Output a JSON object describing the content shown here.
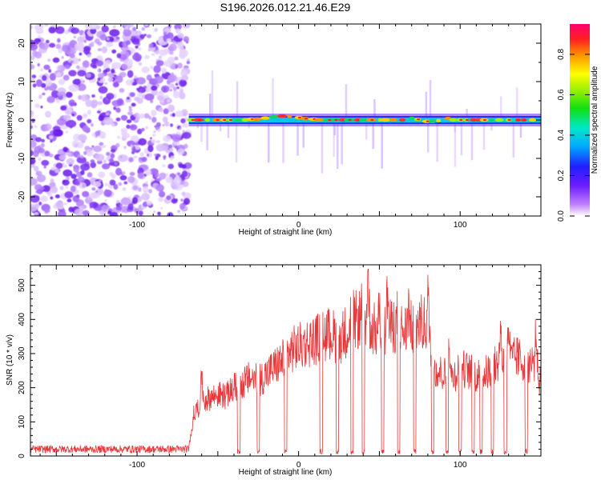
{
  "title": "S196.2026.012.21.46.E29",
  "colors": {
    "snr_line": "#e8373a",
    "axis": "#000000",
    "spectro_bg": "#ffffff"
  },
  "chart_data": [
    {
      "type": "heatmap",
      "name": "spectrogram",
      "xlabel": "Height of straight line (km)",
      "ylabel": "Frequency (Hz)",
      "xlim": [
        -166,
        150
      ],
      "ylim": [
        -25,
        25
      ],
      "xticks": [
        -100,
        0,
        100
      ],
      "xtick_labels": [
        "-100",
        "0",
        "100"
      ],
      "yticks": [
        20,
        10,
        0,
        -10,
        -20
      ],
      "ytick_labels": [
        "20",
        "10",
        "0",
        "-10",
        "-20"
      ],
      "noise_region_km": [
        -166,
        -68
      ],
      "signal_region_km": [
        -68,
        150
      ],
      "signal_frequency_hz": 0,
      "colorbar": {
        "label": "Normalized spectral amplitude",
        "range": [
          0,
          0.95
        ],
        "ticks": [
          0.0,
          0.2,
          0.4,
          0.6,
          0.8
        ],
        "tick_labels": [
          "0.0",
          "0.2",
          "0.4",
          "0.6",
          "0.8"
        ]
      }
    },
    {
      "type": "line",
      "name": "snr",
      "xlabel": "Height of straight line (km)",
      "ylabel": "SNR (10 * v/v)",
      "xlim": [
        -166,
        150
      ],
      "ylim": [
        0,
        560
      ],
      "xticks": [
        -100,
        0,
        100
      ],
      "xtick_labels": [
        "-100",
        "0",
        "100"
      ],
      "yticks": [
        0,
        100,
        200,
        300,
        400,
        500
      ],
      "ytick_labels": [
        "0",
        "100",
        "200",
        "300",
        "400",
        "500"
      ],
      "noise_floor": 20,
      "envelope": [
        [
          -166,
          22
        ],
        [
          -68,
          22
        ],
        [
          -65,
          120
        ],
        [
          -60,
          160
        ],
        [
          -55,
          170
        ],
        [
          -50,
          180
        ],
        [
          -45,
          175
        ],
        [
          -40,
          200
        ],
        [
          -35,
          210
        ],
        [
          -30,
          230
        ],
        [
          -25,
          220
        ],
        [
          -20,
          240
        ],
        [
          -15,
          260
        ],
        [
          -10,
          280
        ],
        [
          -5,
          310
        ],
        [
          0,
          320
        ],
        [
          5,
          330
        ],
        [
          10,
          340
        ],
        [
          15,
          350
        ],
        [
          20,
          360
        ],
        [
          25,
          340
        ],
        [
          30,
          370
        ],
        [
          35,
          395
        ],
        [
          40,
          410
        ],
        [
          45,
          380
        ],
        [
          50,
          350
        ],
        [
          55,
          370
        ],
        [
          60,
          385
        ],
        [
          65,
          365
        ],
        [
          70,
          375
        ],
        [
          75,
          390
        ],
        [
          80,
          380
        ],
        [
          85,
          250
        ],
        [
          90,
          240
        ],
        [
          95,
          230
        ],
        [
          100,
          260
        ],
        [
          105,
          250
        ],
        [
          110,
          235
        ],
        [
          115,
          240
        ],
        [
          120,
          255
        ],
        [
          125,
          280
        ],
        [
          130,
          275
        ],
        [
          135,
          290
        ],
        [
          140,
          270
        ],
        [
          145,
          275
        ],
        [
          150,
          210
        ]
      ],
      "dropouts_km": [
        -37,
        -25,
        -8,
        14,
        24,
        33,
        40,
        52,
        62,
        72,
        83,
        92,
        100,
        108,
        113,
        120,
        128,
        141
      ],
      "peaks": [
        [
          -60,
          250
        ],
        [
          33,
          470
        ],
        [
          40,
          520
        ],
        [
          43,
          555
        ],
        [
          50,
          480
        ],
        [
          55,
          520
        ],
        [
          62,
          495
        ],
        [
          68,
          460
        ],
        [
          80,
          490
        ],
        [
          93,
          420
        ],
        [
          100,
          400
        ],
        [
          125,
          415
        ],
        [
          130,
          420
        ],
        [
          147,
          390
        ]
      ]
    }
  ]
}
